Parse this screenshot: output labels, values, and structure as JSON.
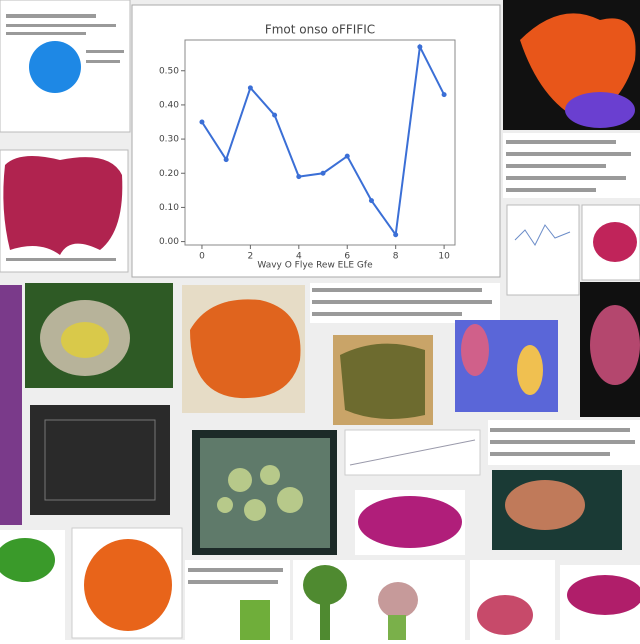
{
  "chart_data": {
    "type": "line",
    "title": "Fmot onso oFFIFIC",
    "xlabel": "Wavy O Flye Rew ELE Gfe",
    "x": [
      0,
      1,
      2,
      3,
      4,
      5,
      6,
      7,
      8,
      9,
      10
    ],
    "series": [
      {
        "name": "series",
        "color": "#3b6fd6",
        "values": [
          0.35,
          0.24,
          0.45,
          0.37,
          0.19,
          0.2,
          0.25,
          0.12,
          0.02,
          0.57,
          0.43
        ]
      }
    ],
    "xlim": [
      -0.7,
      10.45
    ],
    "xticks": [
      0,
      2,
      4,
      6,
      8,
      10
    ],
    "ylim": [
      -0.01,
      0.59
    ],
    "yticks": [
      {
        "value": 0,
        "label": "0.00"
      },
      {
        "value": 0.1,
        "label": "0.10"
      },
      {
        "value": 0.2,
        "label": "0.20"
      },
      {
        "value": 0.3,
        "label": "0.30"
      },
      {
        "value": 0.4,
        "label": "0.40"
      },
      {
        "value": 0.5,
        "label": "0.50"
      }
    ],
    "grid": false
  }
}
